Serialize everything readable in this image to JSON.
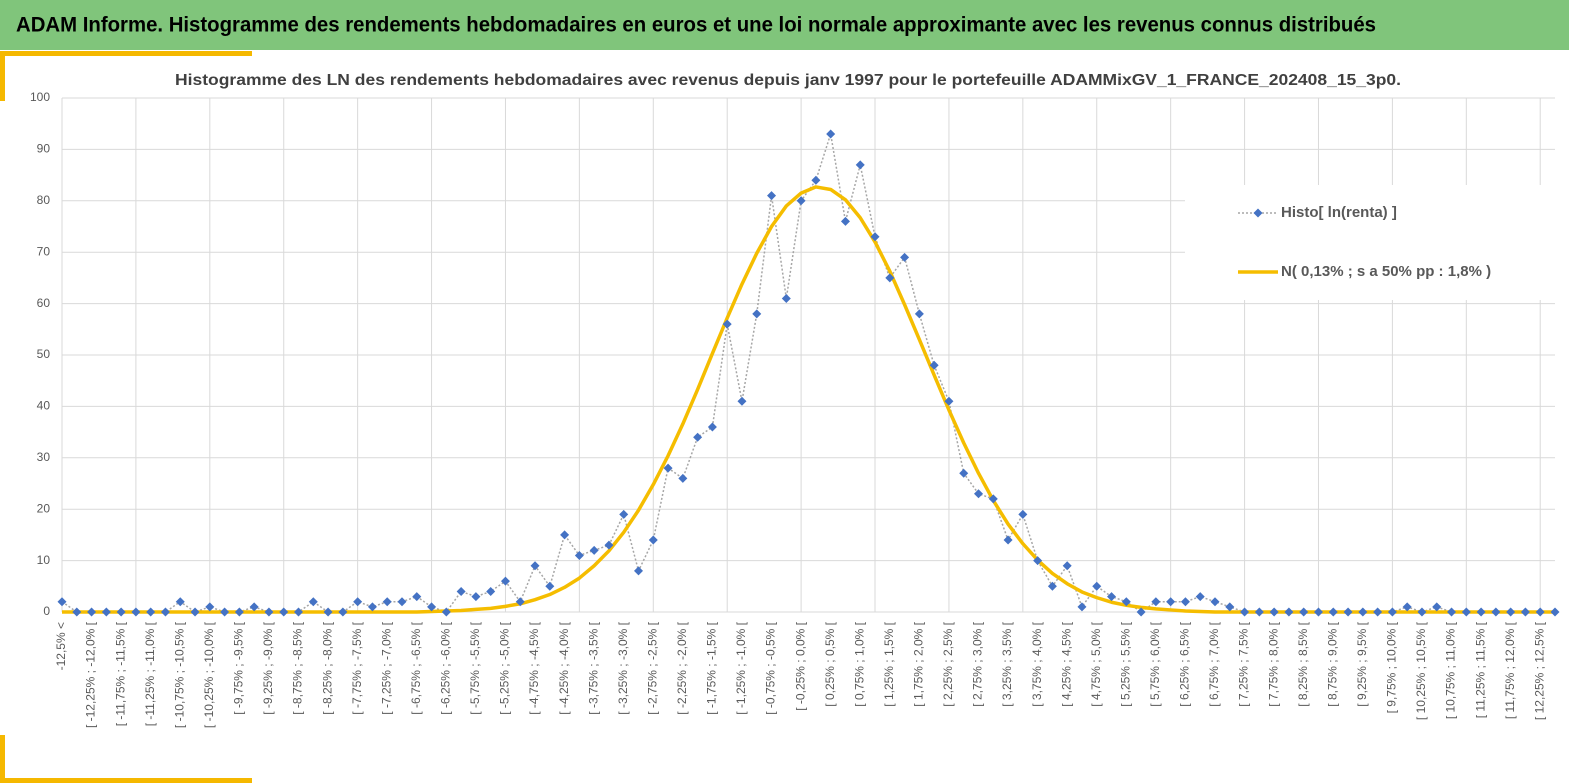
{
  "header": "ADAM Informe. Histogramme des rendements hebdomadaires en euros et une loi normale approximante avec les revenus connus distribués",
  "chart_data": {
    "type": "line",
    "title": "Histogramme des LN des rendements hebdomadaires avec revenus depuis janv 1997 pour le portefeuille ADAMMixGV_1_FRANCE_202408_15_3p0.",
    "categories": [
      "-12,5% <",
      null,
      "[ -12,25% ; -12,0% [",
      null,
      "[ -11,75% ; -11,5% [",
      null,
      "[ -11,25% ; -11,0% [",
      null,
      "[ -10,75% ; -10,5% [",
      null,
      "[ -10,25% ; -10,0% [",
      null,
      "[ -9,75% ; -9,5% [",
      null,
      "[ -9,25% ; -9,0% [",
      null,
      "[ -8,75% ; -8,5% [",
      null,
      "[ -8,25% ; -8,0% [",
      null,
      "[ -7,75% ; -7,5% [",
      null,
      "[ -7,25% ; -7,0% [",
      null,
      "[ -6,75% ; -6,5% [",
      null,
      "[ -6,25% ; -6,0% [",
      null,
      "[ -5,75% ; -5,5% [",
      null,
      "[ -5,25% ; -5,0% [",
      null,
      "[ -4,75% ; -4,5% [",
      null,
      "[ -4,25% ; -4,0% [",
      null,
      "[ -3,75% ; -3,5% [",
      null,
      "[ -3,25% ; -3,0% [",
      null,
      "[ -2,75% ; -2,5% [",
      null,
      "[ -2,25% ; -2,0% [",
      null,
      "[ -1,75% ; -1,5% [",
      null,
      "[ -1,25% ; -1,0% [",
      null,
      "[ -0,75% ; -0,5% [",
      null,
      "[ -0,25% ; 0,0% [",
      null,
      "[ 0,25% ; 0,5% [",
      null,
      "[ 0,75% ; 1,0% [",
      null,
      "[ 1,25% ; 1,5% [",
      null,
      "[ 1,75% ; 2,0% [",
      null,
      "[ 2,25% ; 2,5% [",
      null,
      "[ 2,75% ; 3,0% [",
      null,
      "[ 3,25% ; 3,5% [",
      null,
      "[ 3,75% ; 4,0% [",
      null,
      "[ 4,25% ; 4,5% [",
      null,
      "[ 4,75% ; 5,0% [",
      null,
      "[ 5,25% ; 5,5% [",
      null,
      "[ 5,75% ; 6,0% [",
      null,
      "[ 6,25% ; 6,5% [",
      null,
      "[ 6,75% ; 7,0% [",
      null,
      "[ 7,25% ; 7,5% [",
      null,
      "[ 7,75% ; 8,0% [",
      null,
      "[ 8,25% ; 8,5% [",
      null,
      "[ 8,75% ; 9,0% [",
      null,
      "[ 9,25% ; 9,5% [",
      null,
      "[ 9,75% ; 10,0% [",
      null,
      "[ 10,25% ; 10,5% [",
      null,
      "[ 10,75% ; 11,0% [",
      null,
      "[ 11,25% ; 11,5% [",
      null,
      "[ 11,75% ; 12,0% [",
      null,
      "[ 12,25% ; 12,5% [",
      null
    ],
    "series": [
      {
        "name": "Histo[ ln(renta) ]",
        "color": "#4472c4",
        "line_color": "#a6a6a6",
        "markers": true,
        "values": [
          2,
          0,
          0,
          0,
          0,
          0,
          0,
          0,
          2,
          0,
          1,
          0,
          0,
          1,
          0,
          0,
          0,
          2,
          0,
          0,
          2,
          1,
          2,
          2,
          3,
          1,
          0,
          4,
          3,
          4,
          6,
          2,
          9,
          5,
          15,
          11,
          12,
          13,
          19,
          8,
          14,
          28,
          26,
          34,
          36,
          56,
          41,
          58,
          81,
          61,
          80,
          84,
          93,
          76,
          87,
          73,
          65,
          69,
          58,
          48,
          41,
          27,
          23,
          22,
          14,
          19,
          10,
          5,
          9,
          1,
          5,
          3,
          2,
          0,
          2,
          2,
          2,
          3,
          2,
          1,
          0,
          0,
          0,
          0,
          0,
          0,
          0,
          0,
          0,
          0,
          0,
          1,
          0,
          1,
          0,
          0,
          0,
          0,
          0,
          0,
          0,
          0
        ]
      },
      {
        "name": "N( 0,13% ; s a 50% pp : 1,8% )",
        "color": "#f5bd00",
        "line_color": "#f5bd00",
        "markers": false,
        "values": [
          0,
          0,
          0,
          0,
          0,
          0,
          0,
          0,
          0,
          0,
          0,
          0,
          0,
          0,
          0,
          0,
          0,
          0,
          0,
          0,
          0,
          0,
          0,
          0,
          0,
          0.1,
          0.2,
          0.3,
          0.5,
          0.7,
          1.1,
          1.6,
          2.4,
          3.4,
          4.8,
          6.6,
          9.0,
          11.9,
          15.5,
          19.8,
          24.8,
          30.4,
          36.6,
          43.3,
          50.3,
          57.2,
          63.8,
          69.8,
          75.0,
          79.0,
          81.5,
          82.7,
          82.2,
          80.2,
          76.7,
          72.0,
          66.3,
          59.8,
          53.0,
          46.1,
          39.3,
          32.9,
          27.0,
          21.7,
          17.1,
          13.3,
          10.1,
          7.5,
          5.5,
          3.9,
          2.8,
          1.9,
          1.3,
          0.9,
          0.6,
          0.4,
          0.2,
          0.1,
          0,
          0,
          0,
          0,
          0,
          0,
          0,
          0,
          0,
          0,
          0,
          0,
          0,
          0,
          0,
          0,
          0,
          0,
          0,
          0,
          0,
          0,
          0,
          0
        ]
      }
    ],
    "ylim": [
      0,
      100
    ],
    "yticks": [
      0,
      10,
      20,
      30,
      40,
      50,
      60,
      70,
      80,
      90,
      100
    ],
    "grid": true,
    "legend": "right"
  }
}
